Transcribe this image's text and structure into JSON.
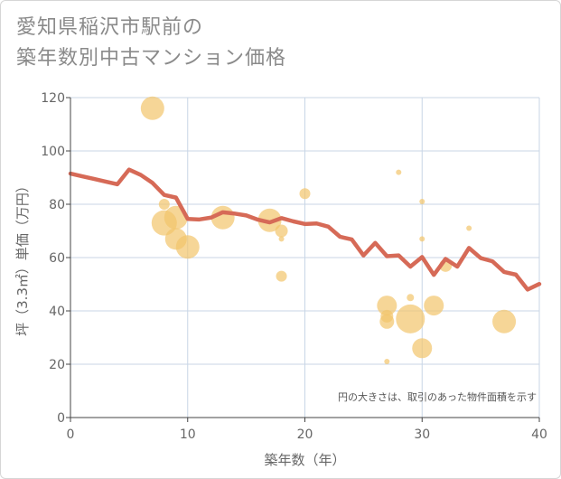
{
  "title": {
    "line1": "愛知県稲沢市駅前の",
    "line2": "築年数別中古マンション価格"
  },
  "chart_data": {
    "type": "scatter",
    "xlabel": "築年数（年）",
    "ylabel": "坪（3.3㎡）単価（万円）",
    "xlim": [
      0,
      40
    ],
    "ylim": [
      0,
      120
    ],
    "xticks": [
      0,
      10,
      20,
      30,
      40
    ],
    "yticks": [
      0,
      20,
      40,
      60,
      80,
      100,
      120
    ],
    "grid": true,
    "note": "円の大きさは、取引のあった物件面積を示す",
    "colors": {
      "bubble": "#f2c46b",
      "line": "#d66a57",
      "grid": "#c8d6e6"
    },
    "bubbles": [
      {
        "x": 7,
        "y": 116,
        "size": 13
      },
      {
        "x": 8,
        "y": 80,
        "size": 6
      },
      {
        "x": 8,
        "y": 73,
        "size": 14
      },
      {
        "x": 9,
        "y": 75,
        "size": 13
      },
      {
        "x": 9,
        "y": 67,
        "size": 12
      },
      {
        "x": 10,
        "y": 64,
        "size": 13
      },
      {
        "x": 13,
        "y": 75,
        "size": 13
      },
      {
        "x": 17,
        "y": 74,
        "size": 13
      },
      {
        "x": 18,
        "y": 70,
        "size": 7
      },
      {
        "x": 18,
        "y": 67,
        "size": 3
      },
      {
        "x": 18,
        "y": 53,
        "size": 6
      },
      {
        "x": 20,
        "y": 84,
        "size": 6
      },
      {
        "x": 27,
        "y": 42,
        "size": 11
      },
      {
        "x": 27,
        "y": 38,
        "size": 7
      },
      {
        "x": 27,
        "y": 36,
        "size": 8
      },
      {
        "x": 27,
        "y": 21,
        "size": 3
      },
      {
        "x": 28,
        "y": 92,
        "size": 3
      },
      {
        "x": 29,
        "y": 45,
        "size": 4
      },
      {
        "x": 29,
        "y": 37,
        "size": 16
      },
      {
        "x": 30,
        "y": 81,
        "size": 3
      },
      {
        "x": 30,
        "y": 67,
        "size": 3
      },
      {
        "x": 30,
        "y": 26,
        "size": 11
      },
      {
        "x": 31,
        "y": 42,
        "size": 11
      },
      {
        "x": 32,
        "y": 57,
        "size": 7
      },
      {
        "x": 34,
        "y": 71,
        "size": 3
      },
      {
        "x": 37,
        "y": 36,
        "size": 13
      }
    ],
    "trend": {
      "x": [
        0,
        1,
        2,
        3,
        4,
        5,
        6,
        7,
        8,
        9,
        10,
        11,
        12,
        13,
        14,
        15,
        16,
        17,
        18,
        19,
        20,
        21,
        22,
        23,
        24,
        25,
        26,
        27,
        28,
        29,
        30,
        31,
        32,
        33,
        34,
        35,
        36,
        37,
        38,
        39,
        40
      ],
      "y": [
        91.5,
        90.5,
        89.5,
        88.5,
        87.5,
        93,
        91,
        88,
        83.5,
        82.5,
        74.5,
        74.3,
        75,
        77,
        76.5,
        75.8,
        74.2,
        73.2,
        74.8,
        73.6,
        72.6,
        72.8,
        71.6,
        67.8,
        66.8,
        60.8,
        65.5,
        60.5,
        60.8,
        56.6,
        60.2,
        53.5,
        59.5,
        56.6,
        63.6,
        59.8,
        58.6,
        54.6,
        53.6,
        48,
        50.1
      ]
    }
  }
}
